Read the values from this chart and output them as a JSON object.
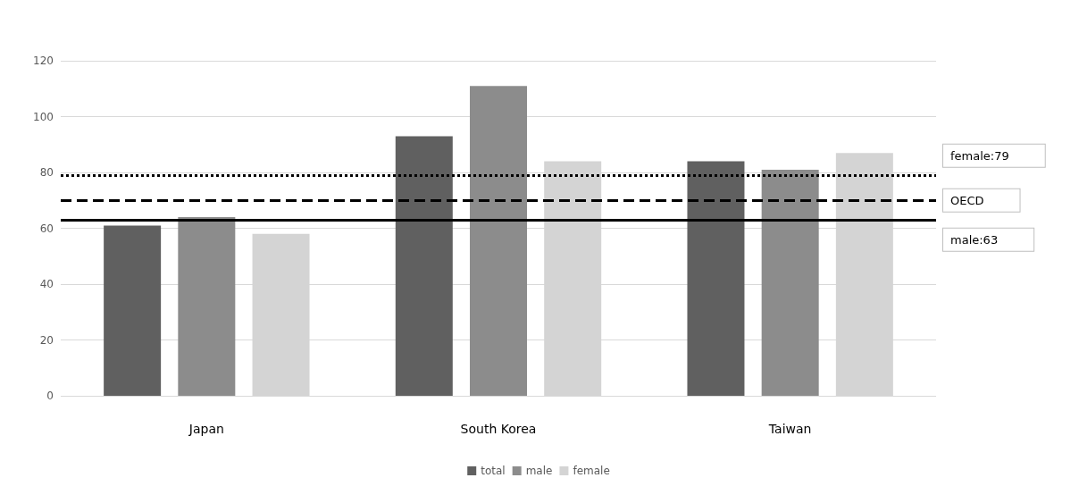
{
  "chart_data": {
    "type": "bar",
    "categories": [
      "Japan",
      "South Korea",
      "Taiwan"
    ],
    "series": [
      {
        "name": "total",
        "color": "#606060",
        "values": [
          61,
          93,
          84
        ]
      },
      {
        "name": "male",
        "color": "#8c8c8c",
        "values": [
          64,
          111,
          81
        ]
      },
      {
        "name": "female",
        "color": "#d4d4d4",
        "values": [
          58,
          84,
          87
        ]
      }
    ],
    "ylim": [
      0,
      120
    ],
    "yticks": [
      0,
      20,
      40,
      60,
      80,
      100,
      120
    ],
    "grid": "y",
    "legend": "bottom",
    "ref_lines": [
      {
        "axis": "y",
        "value": 79,
        "label": "female:79",
        "color": "#000000",
        "line_style": "dotted"
      },
      {
        "axis": "y",
        "value": 70,
        "label": "OECD",
        "color": "#000000",
        "line_style": "dashed"
      },
      {
        "axis": "y",
        "value": 63,
        "label": "male:63",
        "color": "#000000",
        "line_style": "solid"
      }
    ]
  }
}
